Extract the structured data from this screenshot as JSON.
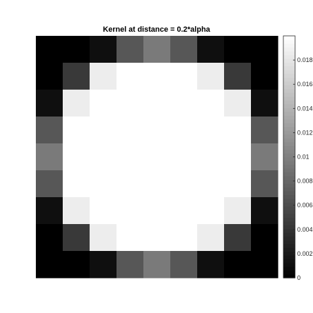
{
  "chart_data": {
    "type": "heatmap",
    "title": "Kernel at distance = 0.2*alpha",
    "colormap": "gray",
    "clim": [
      0,
      0.02
    ],
    "rows": 9,
    "cols": 9,
    "values": [
      [
        0.0,
        0.0,
        0.0012,
        0.0068,
        0.0096,
        0.0068,
        0.0012,
        0.0,
        0.0
      ],
      [
        0.0,
        0.0045,
        0.0186,
        0.02,
        0.02,
        0.02,
        0.0186,
        0.0045,
        0.0
      ],
      [
        0.0012,
        0.0186,
        0.02,
        0.02,
        0.02,
        0.02,
        0.02,
        0.0186,
        0.0012
      ],
      [
        0.0068,
        0.02,
        0.02,
        0.02,
        0.02,
        0.02,
        0.02,
        0.02,
        0.0068
      ],
      [
        0.0096,
        0.02,
        0.02,
        0.02,
        0.02,
        0.02,
        0.02,
        0.02,
        0.0096
      ],
      [
        0.0068,
        0.02,
        0.02,
        0.02,
        0.02,
        0.02,
        0.02,
        0.02,
        0.0068
      ],
      [
        0.0012,
        0.0186,
        0.02,
        0.02,
        0.02,
        0.02,
        0.02,
        0.0186,
        0.0012
      ],
      [
        0.0,
        0.0045,
        0.0186,
        0.02,
        0.02,
        0.02,
        0.0186,
        0.0045,
        0.0
      ],
      [
        0.0,
        0.0,
        0.0012,
        0.0068,
        0.0096,
        0.0068,
        0.0012,
        0.0,
        0.0
      ]
    ],
    "colorbar": {
      "ticks": [
        0,
        0.002,
        0.004,
        0.006,
        0.008,
        0.01,
        0.012,
        0.014,
        0.016,
        0.018
      ],
      "tick_labels": [
        "0",
        "0.002",
        "0.004",
        "0.006",
        "0.008",
        "0.01",
        "0.012",
        "0.014",
        "0.016",
        "0.018"
      ]
    },
    "xlabel": "",
    "ylabel": "",
    "grid": false
  }
}
